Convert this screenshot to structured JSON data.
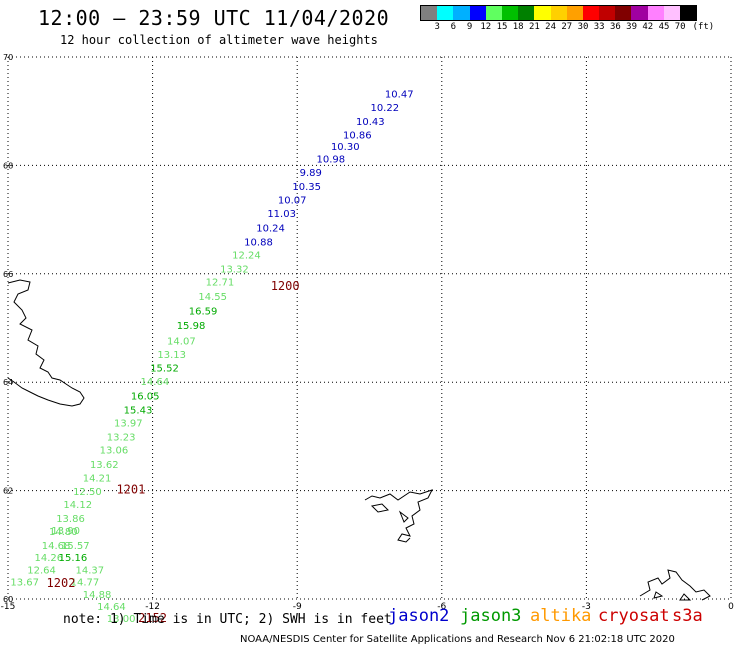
{
  "header": {
    "title": "12:00 – 23:59 UTC 11/04/2020",
    "subtitle": "12 hour collection of altimeter wave heights"
  },
  "legend": {
    "colors": [
      "#808080",
      "#00ffff",
      "#00b0ff",
      "#0000ff",
      "#60ff60",
      "#00c000",
      "#008000",
      "#ffff00",
      "#ffd000",
      "#ffa000",
      "#ff0000",
      "#c00000",
      "#800000",
      "#a000a0",
      "#ff80ff",
      "#ffc0ff",
      "#000000"
    ],
    "labels": [
      "3",
      "6",
      "9",
      "12",
      "15",
      "18",
      "21",
      "24",
      "27",
      "30",
      "33",
      "36",
      "39",
      "42",
      "45",
      "70"
    ],
    "unit": "(ft)"
  },
  "note": "note:  1) Time is in UTC;  2) SWH is in feet",
  "satellites": [
    {
      "name": "jason2",
      "color": "#0000cc"
    },
    {
      "name": "jason3",
      "color": "#009900"
    },
    {
      "name": "altika",
      "color": "#ff9900"
    },
    {
      "name": "cryosat",
      "color": "#cc0000"
    },
    {
      "name": "s3a",
      "color": "#cc0000"
    }
  ],
  "footer": "NOAA/NESDIS Center for Satellite Applications and Research    Nov  6 21:02:18 UTC 2020",
  "chart_data": {
    "type": "scatter",
    "title": "12:00 – 23:59 UTC 11/04/2020",
    "xlim": [
      -15,
      0
    ],
    "ylim": [
      60,
      70
    ],
    "x_ticks": [
      "-15",
      "-12",
      "-9",
      "-6",
      "-3",
      "0"
    ],
    "y_ticks": [
      "60",
      "62",
      "64",
      "66",
      "68",
      "70"
    ],
    "x_tick_values": [
      -15,
      -12,
      -9,
      -6,
      -3,
      0
    ],
    "y_tick_values": [
      60,
      62,
      64,
      66,
      68,
      70
    ],
    "grid": true,
    "series": [
      {
        "name": "jason2",
        "color": "#0000bb",
        "points": [
          {
            "lon": -7.18,
            "lat": 69.25,
            "v": "10.47"
          },
          {
            "lon": -7.48,
            "lat": 69.0,
            "v": "10.22"
          },
          {
            "lon": -7.78,
            "lat": 68.75,
            "v": "10.43"
          },
          {
            "lon": -8.05,
            "lat": 68.5,
            "v": "10.86"
          },
          {
            "lon": -8.3,
            "lat": 68.28,
            "v": "10.30"
          },
          {
            "lon": -8.6,
            "lat": 68.05,
            "v": "10.98"
          },
          {
            "lon": -8.95,
            "lat": 67.8,
            "v": "9.89"
          },
          {
            "lon": -9.1,
            "lat": 67.55,
            "v": "10.35"
          },
          {
            "lon": -9.4,
            "lat": 67.3,
            "v": "10.07"
          },
          {
            "lon": -9.62,
            "lat": 67.05,
            "v": "11.03"
          },
          {
            "lon": -9.85,
            "lat": 66.78,
            "v": "10.24"
          },
          {
            "lon": -10.1,
            "lat": 66.52,
            "v": "10.88"
          }
        ]
      },
      {
        "name": "jason3",
        "color": "#00aa00",
        "points": [
          {
            "lon": -10.35,
            "lat": 66.28,
            "v": "12.24",
            "c": "#66dd66"
          },
          {
            "lon": -10.6,
            "lat": 66.02,
            "v": "13.32",
            "c": "#66dd66"
          },
          {
            "lon": -10.9,
            "lat": 65.78,
            "v": "12.71",
            "c": "#66dd66"
          },
          {
            "lon": -11.05,
            "lat": 65.52,
            "v": "14.55",
            "c": "#66dd66"
          },
          {
            "lon": -11.25,
            "lat": 65.25,
            "v": "16.59",
            "c": "#00aa00"
          },
          {
            "lon": -11.5,
            "lat": 64.98,
            "v": "15.98",
            "c": "#00aa00"
          },
          {
            "lon": -11.7,
            "lat": 64.7,
            "v": "14.07",
            "c": "#66dd66"
          },
          {
            "lon": -11.9,
            "lat": 64.45,
            "v": "13.13",
            "c": "#66dd66"
          },
          {
            "lon": -12.05,
            "lat": 64.2,
            "v": "15.52",
            "c": "#00aa00"
          },
          {
            "lon": -12.25,
            "lat": 63.95,
            "v": "14.64",
            "c": "#66dd66"
          },
          {
            "lon": -12.45,
            "lat": 63.68,
            "v": "16.05",
            "c": "#00aa00"
          },
          {
            "lon": -12.6,
            "lat": 63.42,
            "v": "15.43",
            "c": "#00aa00"
          },
          {
            "lon": -12.8,
            "lat": 63.18,
            "v": "13.97",
            "c": "#66dd66"
          },
          {
            "lon": -12.95,
            "lat": 62.92,
            "v": "13.23",
            "c": "#66dd66"
          },
          {
            "lon": -13.1,
            "lat": 62.68,
            "v": "13.06",
            "c": "#66dd66"
          },
          {
            "lon": -13.3,
            "lat": 62.42,
            "v": "13.62",
            "c": "#66dd66"
          },
          {
            "lon": -13.45,
            "lat": 62.17,
            "v": "14.21",
            "c": "#66dd66"
          },
          {
            "lon": -13.65,
            "lat": 61.92,
            "v": "12.50",
            "c": "#66dd66"
          },
          {
            "lon": -13.85,
            "lat": 61.68,
            "v": "14.12",
            "c": "#66dd66"
          },
          {
            "lon": -14.0,
            "lat": 61.42,
            "v": "13.86",
            "c": "#66dd66"
          },
          {
            "lon": -14.1,
            "lat": 61.2,
            "v": "13.90",
            "c": "#66dd66"
          },
          {
            "lon": -14.15,
            "lat": 61.18,
            "v": "14.80",
            "c": "#66dd66"
          },
          {
            "lon": -14.3,
            "lat": 60.92,
            "v": "14.68",
            "c": "#66dd66"
          },
          {
            "lon": -13.9,
            "lat": 60.92,
            "v": "15.57",
            "c": "#66dd66"
          },
          {
            "lon": -14.45,
            "lat": 60.7,
            "v": "14.26",
            "c": "#66dd66"
          },
          {
            "lon": -13.95,
            "lat": 60.7,
            "v": "15.16",
            "c": "#00aa00"
          },
          {
            "lon": -14.6,
            "lat": 60.47,
            "v": "12.64",
            "c": "#66dd66"
          },
          {
            "lon": -13.6,
            "lat": 60.47,
            "v": "14.37",
            "c": "#66dd66"
          },
          {
            "lon": -14.95,
            "lat": 60.25,
            "v": "13.67",
            "c": "#66dd66"
          },
          {
            "lon": -13.7,
            "lat": 60.25,
            "v": "14.77",
            "c": "#66dd66"
          },
          {
            "lon": -13.45,
            "lat": 60.02,
            "v": "14.88",
            "c": "#66dd66"
          },
          {
            "lon": -13.15,
            "lat": 59.8,
            "v": "14.64",
            "c": "#66dd66"
          },
          {
            "lon": -12.95,
            "lat": 59.58,
            "v": "13.00",
            "c": "#66dd66"
          }
        ]
      }
    ],
    "time_labels": [
      {
        "lon": -9.55,
        "lat": 65.7,
        "v": "1200",
        "c": "#800000"
      },
      {
        "lon": -12.75,
        "lat": 61.95,
        "v": "1201",
        "c": "#800000"
      },
      {
        "lon": -14.2,
        "lat": 60.22,
        "v": "1202",
        "c": "#800000"
      },
      {
        "lon": -12.3,
        "lat": 59.58,
        "v": "2152",
        "c": "#800000"
      }
    ]
  }
}
